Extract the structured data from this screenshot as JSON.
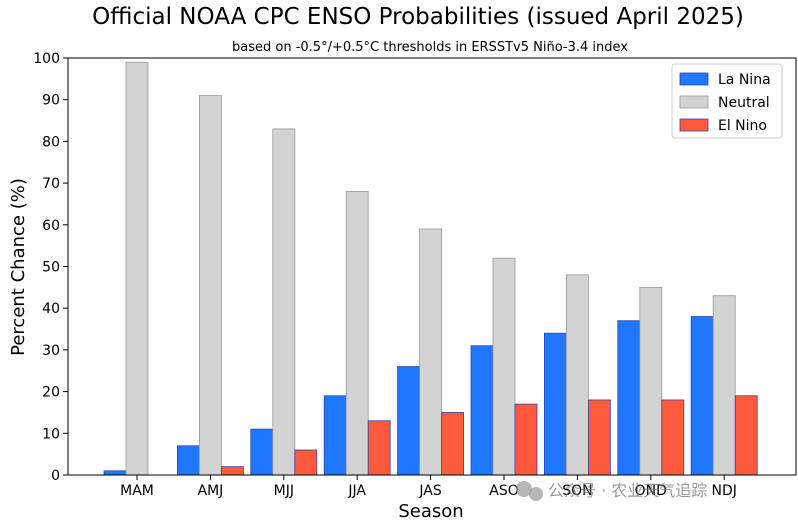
{
  "chart_data": {
    "type": "bar",
    "title": "Official NOAA CPC ENSO Probabilities (issued April 2025)",
    "subtitle": "based on -0.5°/+0.5°C thresholds in ERSSTv5 Niño-3.4 index",
    "xlabel": "Season",
    "ylabel": "Percent Chance (%)",
    "ylim": [
      0,
      100
    ],
    "yticks": [
      0,
      10,
      20,
      30,
      40,
      50,
      60,
      70,
      80,
      90,
      100
    ],
    "grid": false,
    "legend_position": "top-right",
    "categories": [
      "MAM",
      "AMJ",
      "MJJ",
      "JJA",
      "JAS",
      "ASO",
      "SON",
      "OND",
      "NDJ"
    ],
    "series": [
      {
        "name": "La Nina",
        "color": "#1f77ff",
        "values": [
          1,
          7,
          11,
          19,
          26,
          31,
          34,
          37,
          38
        ]
      },
      {
        "name": "Neutral",
        "color": "#d3d3d3",
        "values": [
          99,
          91,
          83,
          68,
          59,
          52,
          48,
          45,
          43
        ]
      },
      {
        "name": "El Nino",
        "color": "#ff5a3c",
        "values": [
          0,
          2,
          6,
          13,
          15,
          17,
          18,
          18,
          19
        ]
      }
    ]
  },
  "watermark": {
    "icon": "wechat-icon",
    "text": "公众号 · 农业天气追踪"
  }
}
